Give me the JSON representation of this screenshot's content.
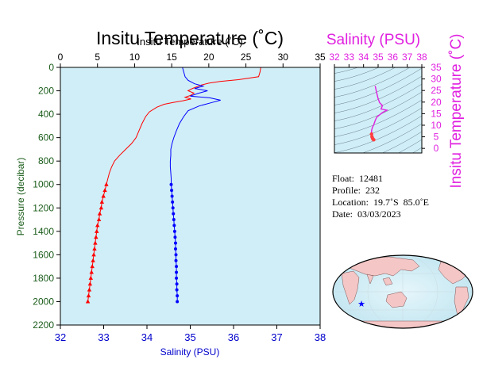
{
  "chart_data": [
    {
      "type": "line",
      "title": "Insitu Temperature (˚C)",
      "overlay_title": "Insitu Temperature (˚C)",
      "xlabel": "Salinity (PSU)",
      "ylabel": "Pressure (decibar)",
      "x_top_label": "Insitu Temperature (˚C)",
      "x_top_ticks": [
        "0",
        "5",
        "10",
        "15",
        "20",
        "25",
        "30",
        "35"
      ],
      "x_top_lim": [
        0,
        35
      ],
      "x_bottom_ticks": [
        "32",
        "33",
        "34",
        "35",
        "36",
        "37",
        "38"
      ],
      "x_bottom_lim": [
        32,
        38
      ],
      "y_ticks": [
        "0",
        "200",
        "400",
        "600",
        "800",
        "1000",
        "1200",
        "1400",
        "1600",
        "1800",
        "2000",
        "2200"
      ],
      "ylim": [
        2200,
        0
      ],
      "colors": {
        "temperature": "#ff0000",
        "salinity": "#0000ff",
        "background": "#d0eef7",
        "axis_text": "#1a5c1a",
        "salinity_axis_text": "#0000cc"
      },
      "series": [
        {
          "name": "",
          "variable": "temperature",
          "axis": "top",
          "color": "#ff0000",
          "points": [
            [
              27.0,
              0
            ],
            [
              26.9,
              40
            ],
            [
              26.7,
              80
            ],
            [
              24.0,
              105
            ],
            [
              21.5,
              120
            ],
            [
              20.0,
              135
            ],
            [
              19.0,
              150
            ],
            [
              17.8,
              180
            ],
            [
              17.2,
              200
            ],
            [
              18.0,
              220
            ],
            [
              17.5,
              240
            ],
            [
              16.8,
              255
            ],
            [
              17.6,
              270
            ],
            [
              16.5,
              285
            ],
            [
              15.2,
              300
            ],
            [
              14.0,
              315
            ],
            [
              13.0,
              340
            ],
            [
              12.0,
              380
            ],
            [
              11.5,
              420
            ],
            [
              11.0,
              480
            ],
            [
              10.6,
              540
            ],
            [
              10.2,
              600
            ],
            [
              9.6,
              650
            ],
            [
              8.8,
              700
            ],
            [
              8.0,
              750
            ],
            [
              7.3,
              800
            ],
            [
              6.9,
              850
            ],
            [
              6.6,
              900
            ],
            [
              6.4,
              950
            ],
            [
              6.2,
              1000
            ],
            [
              6.0,
              1050
            ],
            [
              5.8,
              1100
            ],
            [
              5.6,
              1150
            ],
            [
              5.5,
              1200
            ],
            [
              5.3,
              1250
            ],
            [
              5.2,
              1300
            ],
            [
              5.0,
              1350
            ],
            [
              4.9,
              1400
            ],
            [
              4.8,
              1450
            ],
            [
              4.7,
              1500
            ],
            [
              4.6,
              1550
            ],
            [
              4.5,
              1600
            ],
            [
              4.4,
              1650
            ],
            [
              4.3,
              1700
            ],
            [
              4.2,
              1750
            ],
            [
              4.1,
              1800
            ],
            [
              4.0,
              1850
            ],
            [
              3.9,
              1900
            ],
            [
              3.8,
              1950
            ],
            [
              3.7,
              2000
            ]
          ],
          "marker_from_pressure": 1000
        },
        {
          "name": "",
          "variable": "salinity",
          "axis": "bottom",
          "color": "#0000ff",
          "points": [
            [
              34.82,
              0
            ],
            [
              34.85,
              40
            ],
            [
              34.88,
              80
            ],
            [
              34.95,
              110
            ],
            [
              35.1,
              140
            ],
            [
              35.3,
              160
            ],
            [
              35.1,
              180
            ],
            [
              35.4,
              200
            ],
            [
              35.2,
              220
            ],
            [
              35.0,
              245
            ],
            [
              35.45,
              260
            ],
            [
              35.7,
              280
            ],
            [
              35.5,
              300
            ],
            [
              35.2,
              330
            ],
            [
              34.95,
              370
            ],
            [
              34.85,
              420
            ],
            [
              34.75,
              480
            ],
            [
              34.68,
              540
            ],
            [
              34.62,
              600
            ],
            [
              34.58,
              650
            ],
            [
              34.55,
              700
            ],
            [
              34.55,
              750
            ],
            [
              34.54,
              800
            ],
            [
              34.54,
              850
            ],
            [
              34.55,
              900
            ],
            [
              34.56,
              950
            ],
            [
              34.56,
              1000
            ],
            [
              34.57,
              1050
            ],
            [
              34.58,
              1100
            ],
            [
              34.59,
              1150
            ],
            [
              34.6,
              1200
            ],
            [
              34.61,
              1250
            ],
            [
              34.62,
              1300
            ],
            [
              34.63,
              1350
            ],
            [
              34.64,
              1400
            ],
            [
              34.65,
              1450
            ],
            [
              34.66,
              1500
            ],
            [
              34.66,
              1550
            ],
            [
              34.67,
              1600
            ],
            [
              34.67,
              1650
            ],
            [
              34.68,
              1700
            ],
            [
              34.68,
              1750
            ],
            [
              34.68,
              1800
            ],
            [
              34.69,
              1850
            ],
            [
              34.69,
              1900
            ],
            [
              34.7,
              1950
            ],
            [
              34.7,
              2000
            ]
          ],
          "marker_from_pressure": 1000
        }
      ]
    },
    {
      "type": "line",
      "title": "Salinity (PSU)",
      "xlabel": "",
      "ylabel": "Insitu Temperature (˚C)",
      "x_ticks": [
        "32",
        "33",
        "34",
        "35",
        "36",
        "37",
        "38"
      ],
      "xlim": [
        32,
        38
      ],
      "y_ticks": [
        "0",
        "5",
        "10",
        "15",
        "20",
        "25",
        "30",
        "35"
      ],
      "ylim": [
        -2,
        35
      ],
      "label_color": "#e020e0",
      "series": [
        {
          "name": "",
          "color": "#e020e0",
          "points": [
            [
              34.8,
              27.0
            ],
            [
              34.9,
              24.0
            ],
            [
              35.0,
              21.5
            ],
            [
              35.1,
              19.8
            ],
            [
              35.3,
              18.5
            ],
            [
              35.2,
              17.0
            ],
            [
              35.6,
              16.5
            ],
            [
              35.3,
              15.5
            ],
            [
              34.9,
              13.5
            ],
            [
              34.8,
              12.0
            ],
            [
              34.7,
              10.2
            ],
            [
              34.6,
              9.0
            ],
            [
              34.55,
              7.5
            ],
            [
              34.55,
              6.2
            ],
            [
              34.58,
              5.0
            ],
            [
              34.62,
              4.3
            ],
            [
              34.66,
              3.9
            ],
            [
              34.7,
              3.7
            ]
          ]
        }
      ]
    },
    {
      "type": "map",
      "marker_color": "#0000ff",
      "marker_lat": -19.7,
      "marker_lon": 85.0
    }
  ],
  "float_info": {
    "float": "Float:  12481",
    "profile": "Profile:  232",
    "location": "Location:  19.7˚S  85.0˚E",
    "date": "Date:  03/03/2023"
  }
}
